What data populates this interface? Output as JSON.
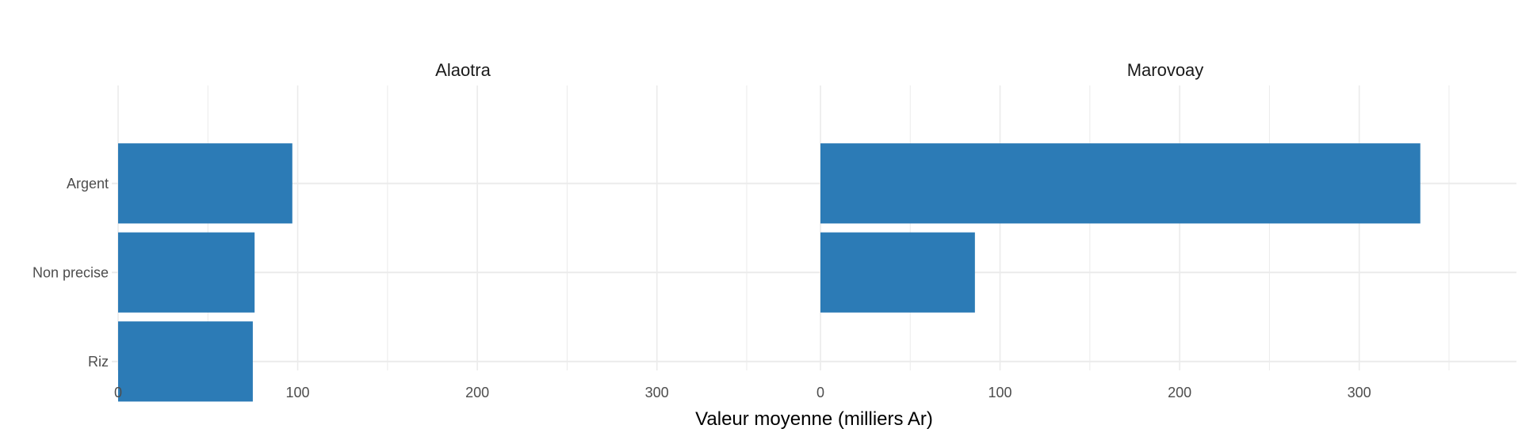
{
  "chart_data": {
    "type": "bar",
    "orientation": "horizontal",
    "facets": [
      "Alaotra",
      "Marovoay"
    ],
    "categories": [
      "Argent",
      "Non precise",
      "Riz"
    ],
    "series": [
      {
        "facet": "Alaotra",
        "values": [
          97,
          76,
          75
        ]
      },
      {
        "facet": "Marovoay",
        "values": [
          334,
          86,
          null
        ]
      }
    ],
    "xlabel": "Valeur moyenne (milliers Ar)",
    "ylabel": "",
    "xlim": [
      0,
      384
    ],
    "xticks": [
      0,
      100,
      200,
      300
    ],
    "xtick_labels": [
      "0",
      "100",
      "200",
      "300"
    ],
    "grid": true,
    "bar_color": "#2C7BB6",
    "grid_color": "#EBEBEB"
  }
}
